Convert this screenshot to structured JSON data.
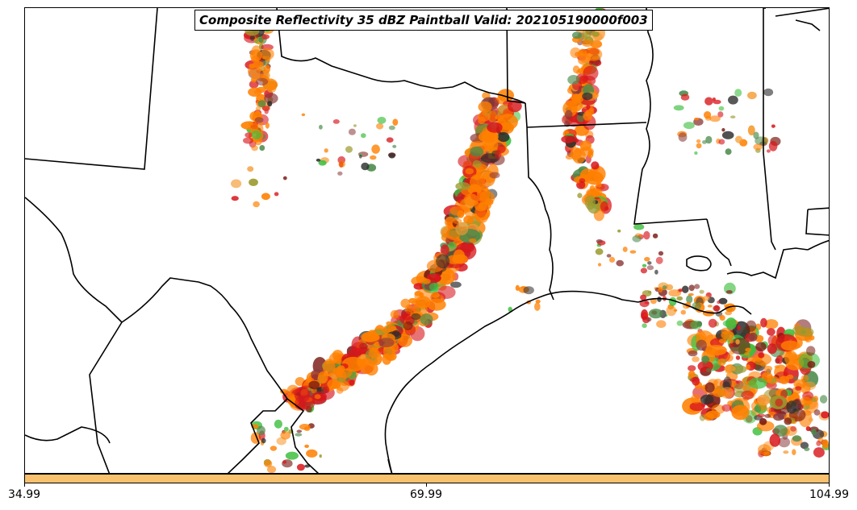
{
  "title": "Composite Reflectivity 35 dBZ Paintball Valid: 202105190000f003",
  "colorbar": {
    "color": "#f9c16d",
    "ticks": [
      "34.99",
      "69.99",
      "104.99"
    ]
  },
  "member_colors": [
    "#d8161b",
    "#ff7f00",
    "#f59b32",
    "#7a1a12",
    "#3fbf3f",
    "#2e2e2e",
    "#9c9a2e",
    "#8b3a3a",
    "#4a8a4a"
  ],
  "map": {
    "features": [
      "state-borders",
      "coastline",
      "country-border"
    ]
  }
}
